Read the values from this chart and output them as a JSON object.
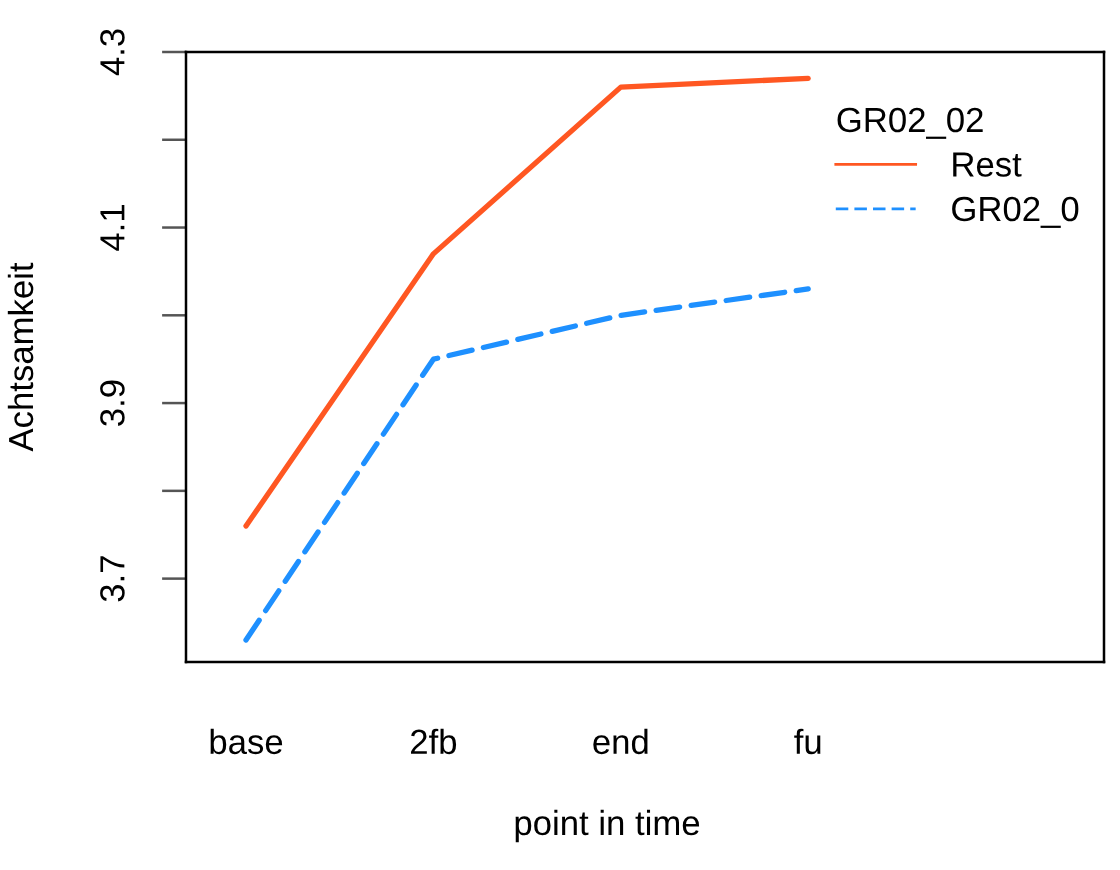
{
  "chart_data": {
    "type": "line",
    "xlabel": "point in time",
    "ylabel": "Achtsamkeit",
    "legend_title": "GR02_02",
    "legend": "top right",
    "categories": [
      "base",
      "2fb",
      "end",
      "fu"
    ],
    "series": [
      {
        "name": "Rest",
        "color": "#ff5722",
        "line_style": "solid",
        "values": [
          3.76,
          4.07,
          4.26,
          4.27
        ]
      },
      {
        "name": "GR02_0",
        "color": "#1e90ff",
        "line_style": "dashed",
        "values": [
          3.63,
          3.95,
          4.0,
          4.03
        ]
      }
    ],
    "ylim": [
      3.605,
      4.3
    ],
    "yticks": [
      3.7,
      {
        "value": 3.8,
        "label": null
      },
      3.9,
      {
        "value": 4.0,
        "label": null
      },
      4.1,
      {
        "value": 4.2,
        "label": null
      },
      4.3
    ]
  }
}
